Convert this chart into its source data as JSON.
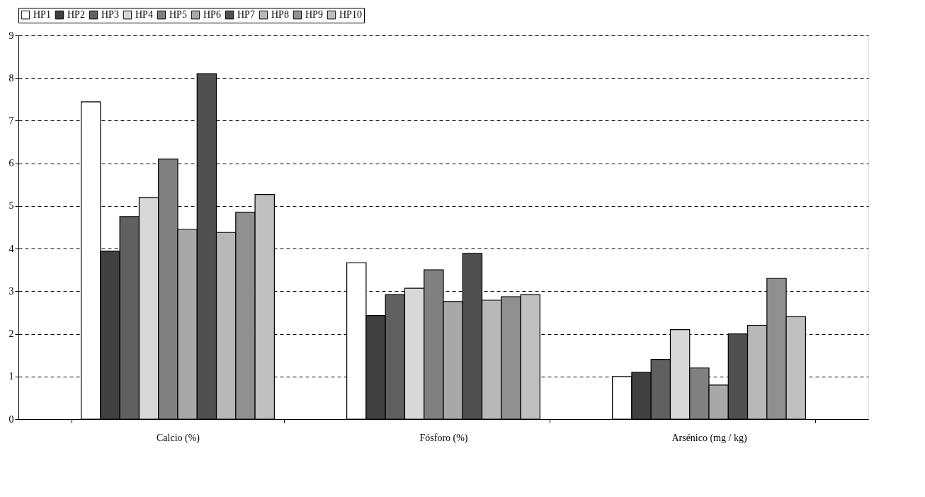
{
  "chart_data": {
    "type": "bar",
    "categories": [
      "Calcio (%)",
      "Fósforo (%)",
      "Arsénico (mg / kg)"
    ],
    "series": [
      {
        "name": "HP1",
        "color": "#ffffff",
        "values": [
          7.44,
          3.67,
          1.0
        ]
      },
      {
        "name": "HP2",
        "color": "#404040",
        "values": [
          3.94,
          2.43,
          1.1
        ]
      },
      {
        "name": "HP3",
        "color": "#606060",
        "values": [
          4.75,
          2.92,
          1.4
        ]
      },
      {
        "name": "HP4",
        "color": "#d8d8d8",
        "values": [
          5.2,
          3.07,
          2.1
        ]
      },
      {
        "name": "HP5",
        "color": "#808080",
        "values": [
          6.1,
          3.5,
          1.2
        ]
      },
      {
        "name": "HP6",
        "color": "#a8a8a8",
        "values": [
          4.45,
          2.76,
          0.8
        ]
      },
      {
        "name": "HP7",
        "color": "#505050",
        "values": [
          8.1,
          3.89,
          2.0
        ]
      },
      {
        "name": "HP8",
        "color": "#b8b8b8",
        "values": [
          4.38,
          2.79,
          2.2
        ]
      },
      {
        "name": "HP9",
        "color": "#909090",
        "values": [
          4.85,
          2.87,
          3.3
        ]
      },
      {
        "name": "HP10",
        "color": "#c0c0c0",
        "values": [
          5.27,
          2.92,
          2.4
        ]
      }
    ],
    "ylim": [
      0,
      9
    ],
    "yticks": [
      0,
      1,
      2,
      3,
      4,
      5,
      6,
      7,
      8,
      9
    ],
    "grid": "y",
    "legend": "top"
  }
}
